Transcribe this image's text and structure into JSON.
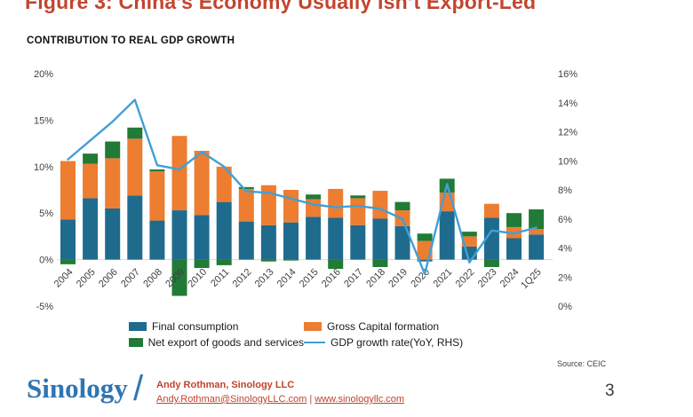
{
  "title": "Figure 3: China’s Economy Usually Isn’t Export-Led",
  "subtitle": "CONTRIBUTION TO REAL GDP GROWTH",
  "source": "Source: CEIC",
  "page_number": "3",
  "footer": {
    "logo": "Sinology",
    "slash": "/",
    "contact_name": "Andy Rothman, Sinology LLC",
    "email": "Andy.Rothman@SinologyLLC.com",
    "separator": "|",
    "website": "www.sinologyllc.com"
  },
  "colors": {
    "title_red": "#c2452f",
    "logo_blue": "#2e75b2",
    "contact_red": "#c0432c",
    "axis_text": "#404040",
    "baseline_gray": "#d9d9d9"
  },
  "chart_data": {
    "type": "bar",
    "subtype": "stacked-bars-with-line-overlay",
    "title": "CONTRIBUTION TO REAL GDP GROWTH",
    "categories": [
      "2004",
      "2005",
      "2006",
      "2007",
      "2008",
      "2009",
      "2010",
      "2011",
      "2012",
      "2013",
      "2014",
      "2015",
      "2016",
      "2017",
      "2018",
      "2019",
      "2020",
      "2021",
      "2022",
      "2023",
      "2024",
      "1Q25"
    ],
    "series": [
      {
        "name": "Final consumption",
        "color": "#1f6b8e",
        "values": [
          4.3,
          6.6,
          5.5,
          6.9,
          4.2,
          5.3,
          4.8,
          6.2,
          4.1,
          3.7,
          4.0,
          4.6,
          4.5,
          3.7,
          4.4,
          3.6,
          -0.2,
          5.2,
          1.4,
          4.5,
          2.3,
          2.7
        ]
      },
      {
        "name": "Gross Capital formation",
        "color": "#ed7d31",
        "values": [
          6.3,
          3.7,
          5.4,
          6.1,
          5.3,
          8.0,
          6.9,
          3.8,
          3.5,
          4.3,
          3.5,
          1.9,
          3.1,
          2.9,
          3.0,
          1.7,
          2.0,
          2.0,
          1.1,
          1.5,
          1.2,
          0.6
        ]
      },
      {
        "name": "Net export of goods and services",
        "color": "#217a36",
        "values": [
          -0.5,
          1.1,
          1.8,
          1.2,
          0.2,
          -3.9,
          -0.9,
          -0.6,
          0.2,
          -0.2,
          -0.1,
          0.5,
          -1.0,
          0.3,
          -0.8,
          0.9,
          0.8,
          1.5,
          0.5,
          -0.8,
          1.5,
          2.1
        ]
      }
    ],
    "line_series": {
      "name": "GDP growth rate(YoY, RHS)",
      "color": "#41a0d6",
      "axis": "right",
      "values": [
        10.1,
        11.4,
        12.7,
        14.2,
        9.7,
        9.4,
        10.6,
        9.6,
        7.9,
        7.8,
        7.4,
        7.0,
        6.8,
        6.9,
        6.7,
        6.0,
        2.2,
        8.4,
        3.0,
        5.2,
        5.0,
        5.4
      ]
    },
    "left_axis": {
      "min": -5,
      "max": 20,
      "tick_values": [
        20,
        15,
        10,
        5,
        0,
        -5
      ],
      "tick_labels": [
        "20%",
        "15%",
        "10%",
        "5%",
        "0%",
        "-5%"
      ]
    },
    "right_axis": {
      "min": 0,
      "max": 16,
      "tick_values": [
        16,
        14,
        12,
        10,
        8,
        6,
        4,
        2,
        0
      ],
      "tick_labels": [
        "16%",
        "14%",
        "12%",
        "10%",
        "8%",
        "6%",
        "4%",
        "2%",
        "0%"
      ]
    },
    "grid": "baseline-only",
    "legend_position": "bottom"
  }
}
